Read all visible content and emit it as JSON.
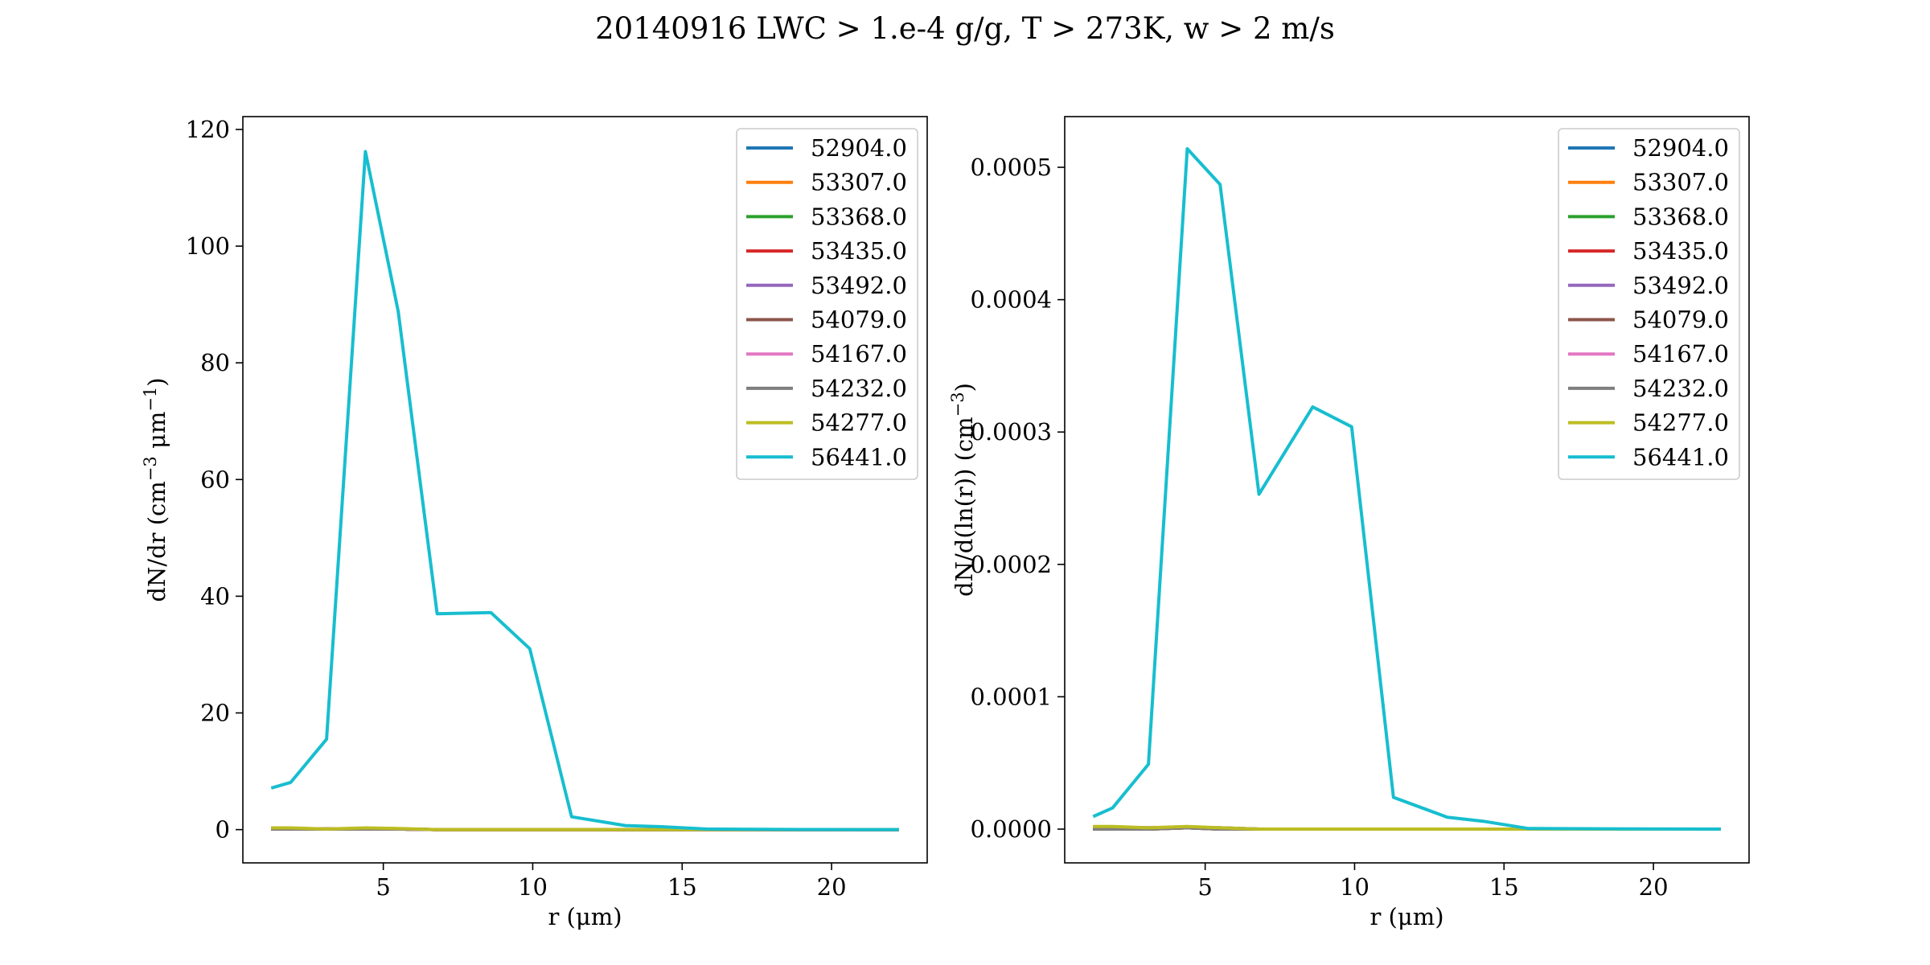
{
  "figure": {
    "title": "20140916 LWC > 1.e-4 g/g, T > 273K, w > 2 m/s"
  },
  "chart_data": [
    {
      "type": "line",
      "xlabel": "r (μm)",
      "ylabel": "dN/dr (cm⁻³ μm⁻¹)",
      "ylabel_main": "dN/dr (cm",
      "ylabel_sup1": "−3",
      "ylabel_mid": " μm",
      "ylabel_sup2": "−1",
      "ylabel_end": ")",
      "xlim": [
        0.3,
        23.2
      ],
      "ylim": [
        -5.7,
        122.2
      ],
      "xticks": [
        5,
        10,
        15,
        20
      ],
      "yticks": [
        0,
        20,
        40,
        60,
        80,
        100,
        120
      ],
      "ytick_labels": [
        "0",
        "20",
        "40",
        "60",
        "80",
        "100",
        "120"
      ],
      "grid": false,
      "legend_position": "top-right",
      "x": [
        1.3,
        1.9,
        3.1,
        4.4,
        5.5,
        6.8,
        8.6,
        9.9,
        11.3,
        13.1,
        14.3,
        15.8,
        17.5,
        19.0,
        20.8,
        22.2
      ],
      "series": [
        {
          "name": "52904.0",
          "color": "#1f77b4",
          "values": [
            0.2,
            0.2,
            0.1,
            0.2,
            0.1,
            0.0,
            0.0,
            0.0,
            0.0,
            0.0,
            0.0,
            0.0,
            0.0,
            0.0,
            0.0,
            0.0
          ]
        },
        {
          "name": "53307.0",
          "color": "#ff7f0e",
          "values": [
            0.1,
            0.1,
            0.1,
            0.1,
            0.1,
            0.0,
            0.0,
            0.0,
            0.0,
            0.0,
            0.0,
            0.0,
            0.0,
            0.0,
            0.0,
            0.0
          ]
        },
        {
          "name": "53368.0",
          "color": "#2ca02c",
          "values": [
            0.2,
            0.2,
            0.1,
            0.2,
            0.1,
            0.0,
            0.0,
            0.0,
            0.0,
            0.0,
            0.0,
            0.0,
            0.0,
            0.0,
            0.0,
            0.0
          ]
        },
        {
          "name": "53435.0",
          "color": "#d62728",
          "values": [
            0.1,
            0.2,
            0.1,
            0.1,
            0.1,
            0.0,
            0.0,
            0.0,
            0.0,
            0.0,
            0.0,
            0.0,
            0.0,
            0.0,
            0.0,
            0.0
          ]
        },
        {
          "name": "53492.0",
          "color": "#9467bd",
          "values": [
            0.2,
            0.1,
            0.1,
            0.1,
            0.1,
            0.0,
            0.0,
            0.0,
            0.0,
            0.0,
            0.0,
            0.0,
            0.0,
            0.0,
            0.0,
            0.0
          ]
        },
        {
          "name": "54079.0",
          "color": "#8c564b",
          "values": [
            0.1,
            0.1,
            0.1,
            0.1,
            0.1,
            0.0,
            0.0,
            0.0,
            0.0,
            0.0,
            0.0,
            0.0,
            0.0,
            0.0,
            0.0,
            0.0
          ]
        },
        {
          "name": "54167.0",
          "color": "#e377c2",
          "values": [
            0.2,
            0.2,
            0.1,
            0.2,
            0.1,
            0.0,
            0.0,
            0.0,
            0.0,
            0.0,
            0.0,
            0.0,
            0.0,
            0.0,
            0.0,
            0.0
          ]
        },
        {
          "name": "54232.0",
          "color": "#7f7f7f",
          "values": [
            0.1,
            0.1,
            0.1,
            0.1,
            0.1,
            0.0,
            0.0,
            0.0,
            0.0,
            0.0,
            0.0,
            0.0,
            0.0,
            0.0,
            0.0,
            0.0
          ]
        },
        {
          "name": "54277.0",
          "color": "#bcbd22",
          "values": [
            0.3,
            0.3,
            0.1,
            0.3,
            0.2,
            0.0,
            0.0,
            0.0,
            0.0,
            0.0,
            0.0,
            0.0,
            0.0,
            0.0,
            0.0,
            0.0
          ]
        },
        {
          "name": "56441.0",
          "color": "#17becf",
          "values": [
            7.2,
            8.1,
            15.5,
            116.2,
            88.8,
            37.0,
            37.2,
            31.0,
            2.2,
            0.7,
            0.5,
            0.1,
            0.05,
            0.02,
            0.01,
            0.0
          ]
        }
      ]
    },
    {
      "type": "line",
      "xlabel": "r (μm)",
      "ylabel": "dN/d(ln(r)) (cm⁻³)",
      "ylabel_main": "dN/d(ln(r)) (cm",
      "ylabel_sup1": "−3",
      "ylabel_mid": "",
      "ylabel_sup2": "",
      "ylabel_end": ")",
      "xlim": [
        0.3,
        23.2
      ],
      "ylim": [
        -2.55e-05,
        0.0005383
      ],
      "xticks": [
        5,
        10,
        15,
        20
      ],
      "yticks": [
        0,
        0.0001,
        0.0002,
        0.0003,
        0.0004,
        0.0005
      ],
      "ytick_labels": [
        "0.0000",
        "0.0001",
        "0.0002",
        "0.0003",
        "0.0004",
        "0.0005"
      ],
      "grid": false,
      "legend_position": "top-right",
      "x": [
        1.3,
        1.9,
        3.1,
        4.4,
        5.5,
        6.8,
        8.6,
        9.9,
        11.3,
        13.1,
        14.3,
        15.8,
        17.5,
        19.0,
        20.8,
        22.2
      ],
      "series": [
        {
          "name": "52904.0",
          "color": "#1f77b4",
          "values": [
            1e-06,
            1e-06,
            1e-06,
            1e-06,
            1e-06,
            0.0,
            0.0,
            0.0,
            0.0,
            0.0,
            0.0,
            0.0,
            0.0,
            0.0,
            0.0,
            0.0
          ]
        },
        {
          "name": "53307.0",
          "color": "#ff7f0e",
          "values": [
            0.0,
            1e-06,
            0.0,
            1e-06,
            0.0,
            0.0,
            0.0,
            0.0,
            0.0,
            0.0,
            0.0,
            0.0,
            0.0,
            0.0,
            0.0,
            0.0
          ]
        },
        {
          "name": "53368.0",
          "color": "#2ca02c",
          "values": [
            1e-06,
            1e-06,
            1e-06,
            1e-06,
            1e-06,
            0.0,
            0.0,
            0.0,
            0.0,
            0.0,
            0.0,
            0.0,
            0.0,
            0.0,
            0.0,
            0.0
          ]
        },
        {
          "name": "53435.0",
          "color": "#d62728",
          "values": [
            0.0,
            1e-06,
            0.0,
            1e-06,
            0.0,
            0.0,
            0.0,
            0.0,
            0.0,
            0.0,
            0.0,
            0.0,
            0.0,
            0.0,
            0.0,
            0.0
          ]
        },
        {
          "name": "53492.0",
          "color": "#9467bd",
          "values": [
            1e-06,
            0.0,
            1e-06,
            1e-06,
            0.0,
            0.0,
            0.0,
            0.0,
            0.0,
            0.0,
            0.0,
            0.0,
            0.0,
            0.0,
            0.0,
            0.0
          ]
        },
        {
          "name": "54079.0",
          "color": "#8c564b",
          "values": [
            0.0,
            0.0,
            0.0,
            1e-06,
            0.0,
            0.0,
            0.0,
            0.0,
            0.0,
            0.0,
            0.0,
            0.0,
            0.0,
            0.0,
            0.0,
            0.0
          ]
        },
        {
          "name": "54167.0",
          "color": "#e377c2",
          "values": [
            1e-06,
            1e-06,
            1e-06,
            1e-06,
            1e-06,
            0.0,
            0.0,
            0.0,
            0.0,
            0.0,
            0.0,
            0.0,
            0.0,
            0.0,
            0.0,
            0.0
          ]
        },
        {
          "name": "54232.0",
          "color": "#7f7f7f",
          "values": [
            0.0,
            0.0,
            0.0,
            1e-06,
            0.0,
            0.0,
            0.0,
            0.0,
            0.0,
            0.0,
            0.0,
            0.0,
            0.0,
            0.0,
            0.0,
            0.0
          ]
        },
        {
          "name": "54277.0",
          "color": "#bcbd22",
          "values": [
            2e-06,
            2e-06,
            1e-06,
            2e-06,
            1e-06,
            0.0,
            0.0,
            0.0,
            0.0,
            0.0,
            0.0,
            0.0,
            0.0,
            0.0,
            0.0,
            0.0
          ]
        },
        {
          "name": "56441.0",
          "color": "#17becf",
          "values": [
            1e-05,
            1.6e-05,
            4.9e-05,
            0.000514,
            0.000487,
            0.000253,
            0.000319,
            0.000304,
            2.4e-05,
            9e-06,
            6e-06,
            5e-07,
            3e-07,
            2e-07,
            1e-07,
            0.0
          ]
        }
      ]
    }
  ]
}
